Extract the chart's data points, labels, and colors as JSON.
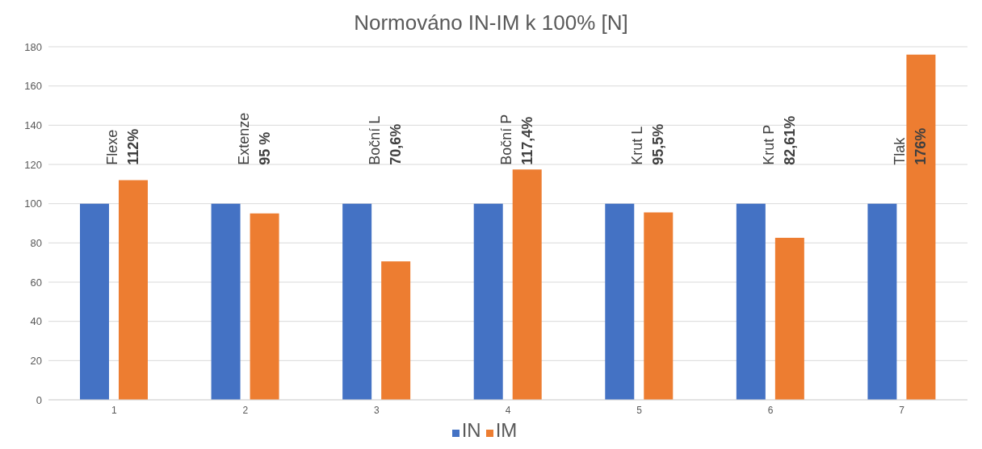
{
  "chart_data": {
    "type": "bar",
    "title": "Normováno IN-IM k 100% [N]",
    "categories": [
      "1",
      "2",
      "3",
      "4",
      "5",
      "6",
      "7"
    ],
    "series": [
      {
        "name": "IN",
        "color": "#4472c4",
        "values": [
          100,
          100,
          100,
          100,
          100,
          100,
          100
        ]
      },
      {
        "name": "IM",
        "color": "#ed7d31",
        "values": [
          112,
          95,
          70.6,
          117.4,
          95.5,
          82.61,
          176
        ]
      }
    ],
    "annotations": [
      "Flexe 112%",
      "Extenze 95 %",
      "Boční L 70,6%",
      "Boční P 117,4%",
      "Krut L 95,5%",
      "Krut P 82,61%",
      "Tlak 176%"
    ],
    "ylim": [
      0,
      180
    ],
    "yticks": [
      0,
      20,
      40,
      60,
      80,
      100,
      120,
      140,
      160,
      180
    ],
    "grid": "y",
    "legend": "bottom"
  }
}
